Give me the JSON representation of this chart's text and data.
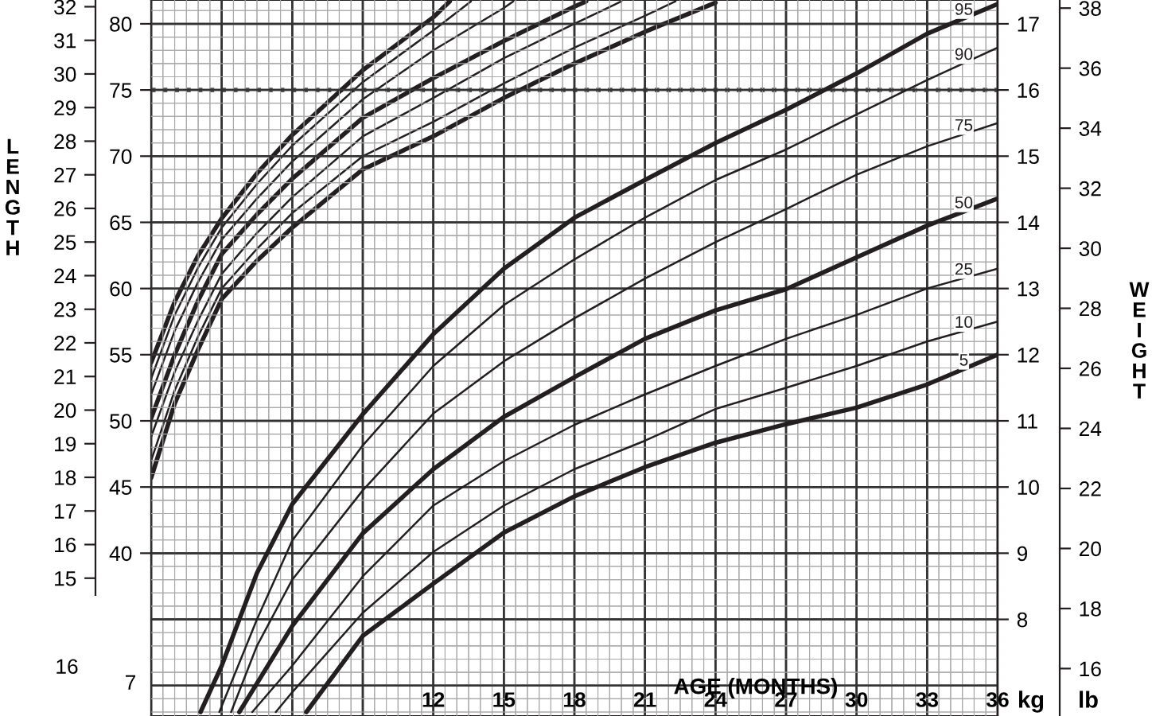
{
  "chart_data": [
    {
      "type": "line",
      "y2label": "LENGTH",
      "tick_labels": "y",
      "xlim": [
        0,
        36
      ],
      "ylim": [
        27.7,
        81.8
      ],
      "yticks": [
        40,
        45,
        50,
        55,
        60,
        65,
        70,
        75,
        80
      ],
      "y2lim": [
        10.9,
        32.2
      ],
      "y2ticks": [
        15,
        16,
        17,
        18,
        19,
        20,
        21,
        22,
        23,
        24,
        25,
        26,
        27,
        28,
        29,
        30,
        31,
        32
      ],
      "grid": true,
      "legend": false,
      "ref_lines": [
        {
          "axis": "y",
          "value": 75,
          "line_style": "dotted",
          "color": "#555555"
        }
      ],
      "series": [
        {
          "color": "#231f20",
          "x": [
            0,
            1,
            2,
            3,
            4.5,
            6,
            9,
            12,
            12.7
          ],
          "values": [
            54.4,
            59.0,
            62.5,
            65.3,
            68.7,
            71.6,
            76.5,
            80.5,
            81.7
          ]
        },
        {
          "color": "#231f20",
          "x": [
            0,
            1,
            2,
            3,
            4.5,
            6,
            9,
            12,
            13.6
          ],
          "values": [
            53.2,
            58.0,
            61.6,
            64.6,
            67.9,
            70.8,
            75.6,
            79.5,
            81.7
          ]
        },
        {
          "color": "#231f20",
          "x": [
            0,
            1,
            2,
            3,
            4.5,
            6,
            9,
            12,
            15,
            15.4
          ],
          "values": [
            52.0,
            56.8,
            60.5,
            63.7,
            66.8,
            69.6,
            74.3,
            78.0,
            81.2,
            81.7
          ]
        },
        {
          "color": "#231f20",
          "x": [
            0,
            1,
            2,
            3,
            4.5,
            6,
            9,
            12,
            15,
            18,
            18.5
          ],
          "values": [
            50.2,
            55.0,
            59.1,
            62.6,
            65.6,
            68.3,
            72.9,
            75.9,
            78.7,
            81.3,
            81.7
          ]
        },
        {
          "color": "#231f20",
          "x": [
            0,
            1,
            2,
            3,
            4.5,
            6,
            9,
            12,
            15,
            18,
            20
          ],
          "values": [
            48.8,
            53.7,
            57.6,
            61.1,
            64.2,
            66.9,
            71.5,
            74.4,
            77.4,
            80.0,
            81.7
          ]
        },
        {
          "color": "#231f20",
          "x": [
            0,
            1,
            2,
            3,
            4.5,
            6,
            9,
            12,
            15,
            18,
            21,
            22.3
          ],
          "values": [
            47.0,
            52.3,
            56.4,
            60.0,
            63.0,
            65.7,
            70.0,
            72.6,
            75.5,
            78.2,
            80.6,
            81.7
          ]
        },
        {
          "color": "#231f20",
          "x": [
            0,
            1,
            2,
            3,
            4.5,
            6,
            9,
            12,
            15,
            18,
            21,
            24
          ],
          "values": [
            45.7,
            51.3,
            55.4,
            59.2,
            62.1,
            64.6,
            69.0,
            71.5,
            74.4,
            77.0,
            79.4,
            81.6
          ]
        }
      ]
    },
    {
      "type": "line",
      "xlabel": "AGE (MONTHS)",
      "y2label": "WEIGHT",
      "annotations": [
        "kg",
        "lb",
        "7",
        "16"
      ],
      "xlim": [
        0,
        36
      ],
      "xticks": [
        12,
        15,
        18,
        21,
        24,
        27,
        30,
        33,
        36
      ],
      "ylim": [
        6.54,
        17.36
      ],
      "yticks": [
        8,
        9,
        10,
        11,
        12,
        13,
        14,
        15,
        16,
        17
      ],
      "y2lim": [
        14.42,
        38.27
      ],
      "y2ticks": [
        16,
        18,
        20,
        22,
        24,
        26,
        28,
        30,
        32,
        34,
        36,
        38
      ],
      "grid": true,
      "legend": false,
      "series": [
        {
          "name": "95",
          "color": "#231f20",
          "x": [
            2.1,
            3,
            4.5,
            6,
            9,
            12,
            15,
            18,
            21,
            24,
            27,
            30,
            33,
            36
          ],
          "values": [
            6.6,
            7.3,
            8.7,
            9.74,
            11.1,
            12.31,
            13.3,
            14.07,
            14.64,
            15.2,
            15.7,
            16.25,
            16.85,
            17.3
          ]
        },
        {
          "name": "90",
          "color": "#231f20",
          "x": [
            2.9,
            4.5,
            6,
            9,
            12,
            15,
            18,
            21,
            24,
            27,
            30,
            33,
            36
          ],
          "values": [
            6.6,
            8.0,
            9.19,
            10.63,
            11.83,
            12.75,
            13.44,
            14.07,
            14.64,
            15.1,
            15.63,
            16.15,
            16.64
          ]
        },
        {
          "name": "75",
          "color": "#231f20",
          "x": [
            3.4,
            4.5,
            6,
            9,
            12,
            15,
            18,
            21,
            24,
            27,
            30,
            33,
            36
          ],
          "values": [
            6.6,
            7.6,
            8.6,
            9.95,
            11.11,
            11.9,
            12.55,
            13.15,
            13.7,
            14.2,
            14.72,
            15.15,
            15.5
          ]
        },
        {
          "name": "50",
          "color": "#231f20",
          "x": [
            3.75,
            6,
            9,
            12,
            15,
            18,
            21,
            24,
            27,
            30,
            33,
            36
          ],
          "values": [
            6.6,
            7.9,
            9.3,
            10.27,
            11.06,
            11.66,
            12.24,
            12.67,
            12.99,
            13.47,
            13.95,
            14.36
          ]
        },
        {
          "name": "25",
          "color": "#231f20",
          "x": [
            4.3,
            6,
            9,
            12,
            15,
            18,
            21,
            24,
            27,
            30,
            33,
            36
          ],
          "values": [
            6.6,
            7.3,
            8.65,
            9.72,
            10.39,
            10.94,
            11.4,
            11.83,
            12.24,
            12.6,
            13.0,
            13.3
          ]
        },
        {
          "name": "10",
          "color": "#231f20",
          "x": [
            5.3,
            6,
            9,
            12,
            15,
            18,
            21,
            24,
            27,
            30,
            33,
            36
          ],
          "values": [
            6.6,
            6.9,
            8.1,
            9.02,
            9.72,
            10.27,
            10.7,
            11.18,
            11.5,
            11.83,
            12.2,
            12.5
          ]
        },
        {
          "name": "5",
          "color": "#231f20",
          "x": [
            6.6,
            9,
            12,
            15,
            18,
            21,
            24,
            27,
            30,
            33,
            36
          ],
          "values": [
            6.6,
            7.75,
            8.54,
            9.31,
            9.86,
            10.3,
            10.67,
            10.95,
            11.2,
            11.55,
            12.0
          ]
        }
      ]
    }
  ]
}
